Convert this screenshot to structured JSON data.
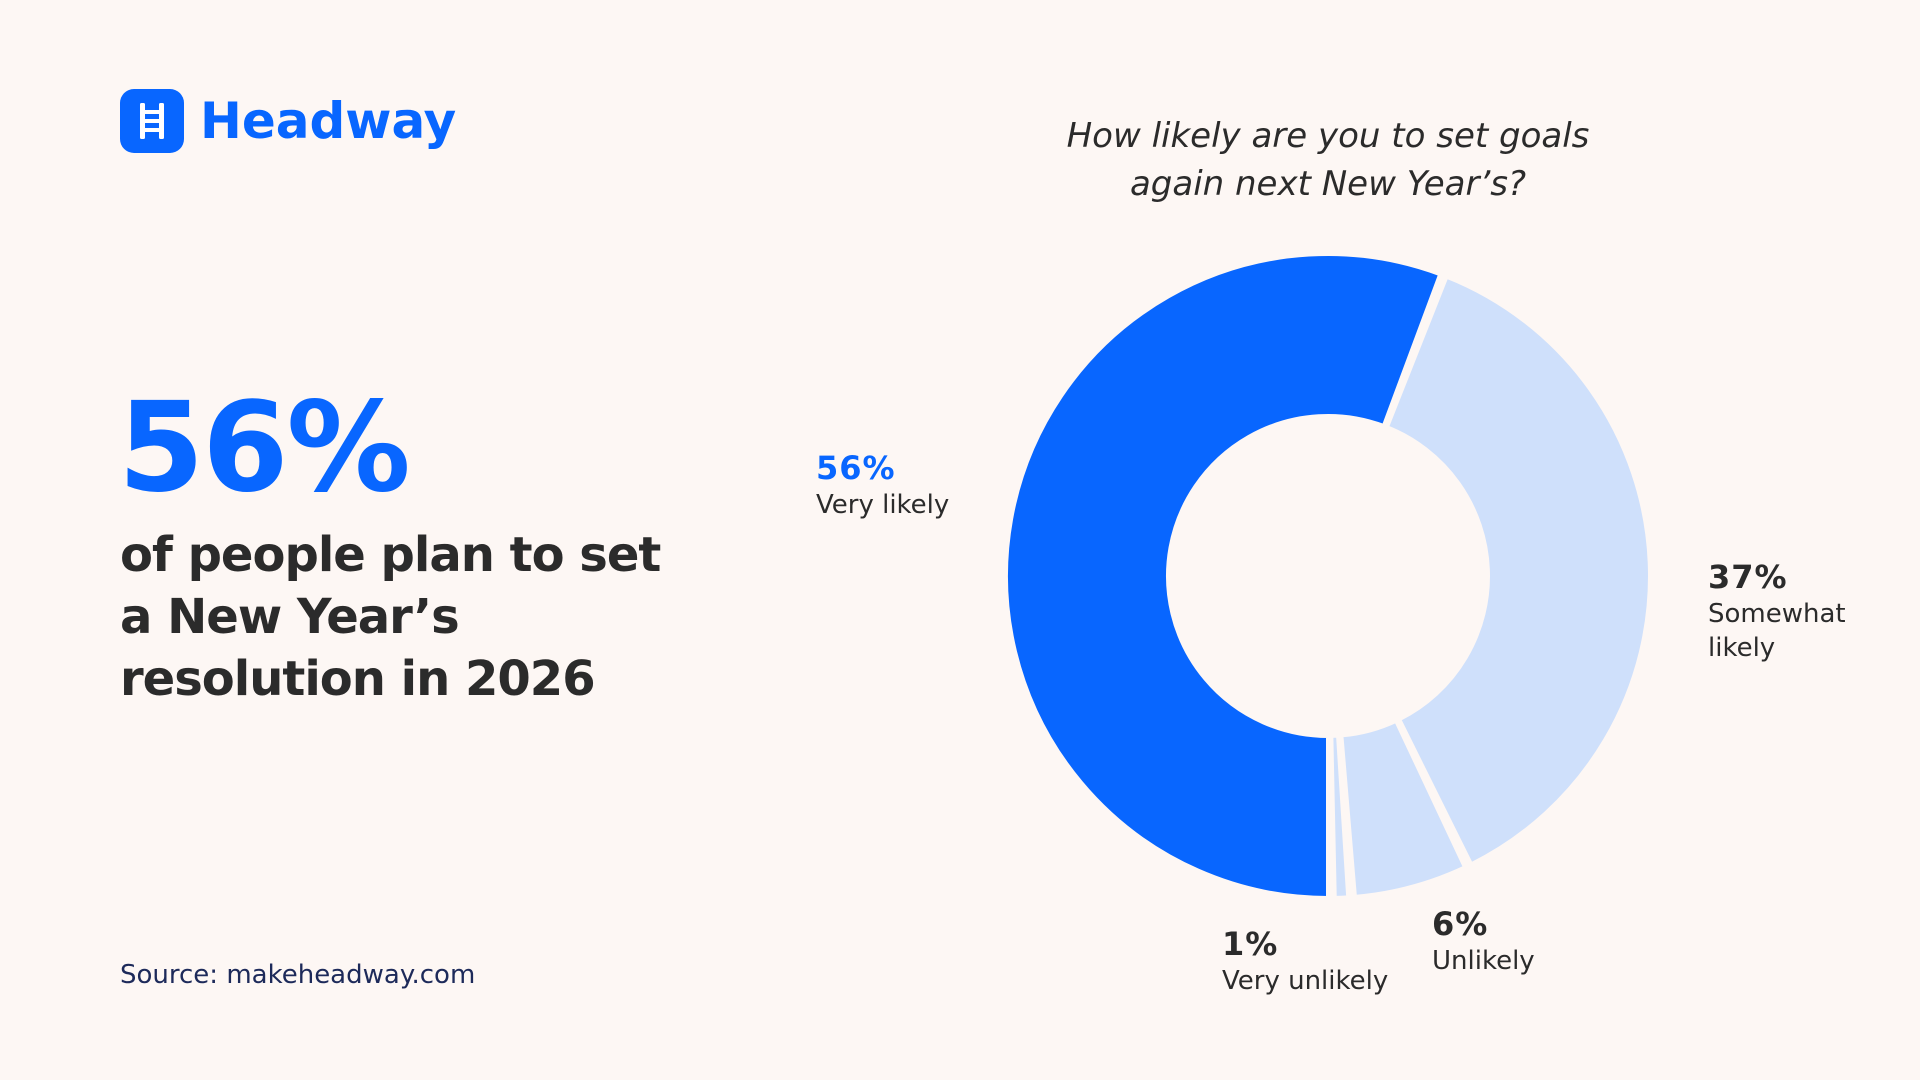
{
  "brand": {
    "name": "Headway",
    "color": "#0866ff",
    "icon": "ladder-icon"
  },
  "headline": {
    "stat": "56%",
    "text": "of people plan to set a New Year’s resolution in 2026"
  },
  "source": "Source: makeheadway.com",
  "chart_data": {
    "type": "pie",
    "title": "How likely are you to set goals again next New Year’s?",
    "donut": true,
    "slices": [
      {
        "label": "Very likely",
        "value": 56,
        "value_label": "56%",
        "color": "#0866ff",
        "label_color": "#0866ff"
      },
      {
        "label": "Somewhat likely",
        "value": 37,
        "value_label": "37%",
        "color": "#cfe0fb",
        "label_color": "#2b2b2b"
      },
      {
        "label": "Unlikely",
        "value": 6,
        "value_label": "6%",
        "color": "#cfe0fb",
        "label_color": "#2b2b2b"
      },
      {
        "label": "Very unlikely",
        "value": 1,
        "value_label": "1%",
        "color": "#cfe0fb",
        "label_color": "#2b2b2b"
      }
    ],
    "legend": "none"
  }
}
